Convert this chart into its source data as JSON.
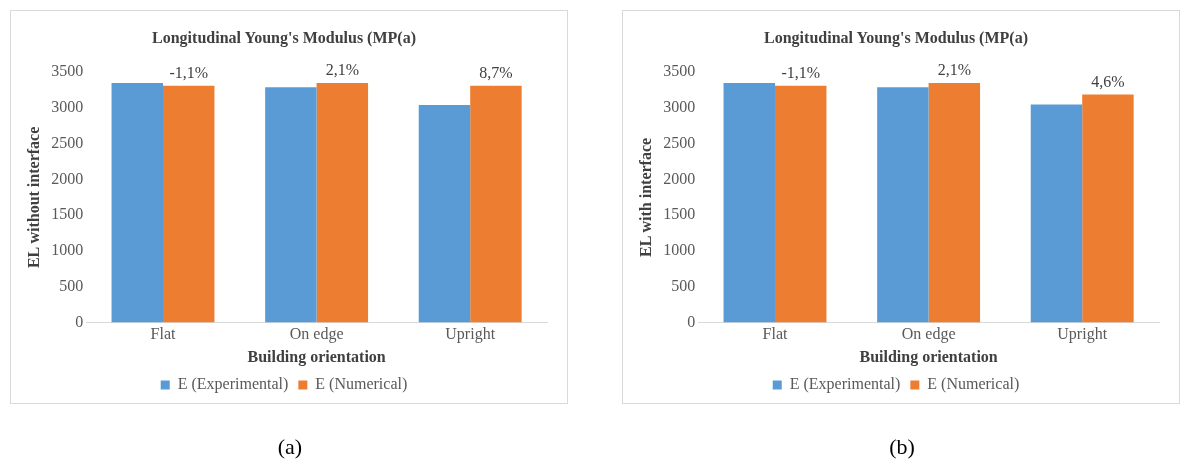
{
  "chart_data": [
    {
      "type": "bar",
      "title": "Longitudinal Young's Modulus (MP(a)",
      "xlabel": "Building orientation",
      "ylabel": "EL without interface",
      "categories": [
        "Flat",
        "On edge",
        "Upright"
      ],
      "series": [
        {
          "name": "E (Experimental)",
          "color": "#5b9bd5",
          "values": [
            3350,
            3290,
            3040
          ]
        },
        {
          "name": "E (Numerical)",
          "color": "#ed7d31",
          "values": [
            3310,
            3350,
            3310
          ]
        }
      ],
      "ylim": [
        0,
        3500
      ],
      "yticks": [
        0,
        500,
        1000,
        1500,
        2000,
        2500,
        3000,
        3500
      ],
      "grid": false,
      "legend": "bottom",
      "annotations": [
        {
          "text": "-1,1%",
          "x": "Flat",
          "y": 3310
        },
        {
          "text": "2,1%",
          "x": "On edge",
          "y": 3350
        },
        {
          "text": "8,7%",
          "x": "Upright",
          "y": 3310
        },
        "(a)"
      ]
    },
    {
      "type": "bar",
      "title": "Longitudinal Young's Modulus (MP(a)",
      "xlabel": "Building orientation",
      "ylabel": "EL with interface",
      "categories": [
        "Flat",
        "On edge",
        "Upright"
      ],
      "series": [
        {
          "name": "E (Experimental)",
          "color": "#5b9bd5",
          "values": [
            3350,
            3290,
            3050
          ]
        },
        {
          "name": "E (Numerical)",
          "color": "#ed7d31",
          "values": [
            3310,
            3350,
            3190
          ]
        }
      ],
      "ylim": [
        0,
        3500
      ],
      "yticks": [
        0,
        500,
        1000,
        1500,
        2000,
        2500,
        3000,
        3500
      ],
      "grid": false,
      "legend": "bottom",
      "annotations": [
        {
          "text": "-1,1%",
          "x": "Flat",
          "y": 3310
        },
        {
          "text": "2,1%",
          "x": "On edge",
          "y": 3350
        },
        {
          "text": "4,6%",
          "x": "Upright",
          "y": 3190
        },
        "(b)"
      ]
    }
  ]
}
